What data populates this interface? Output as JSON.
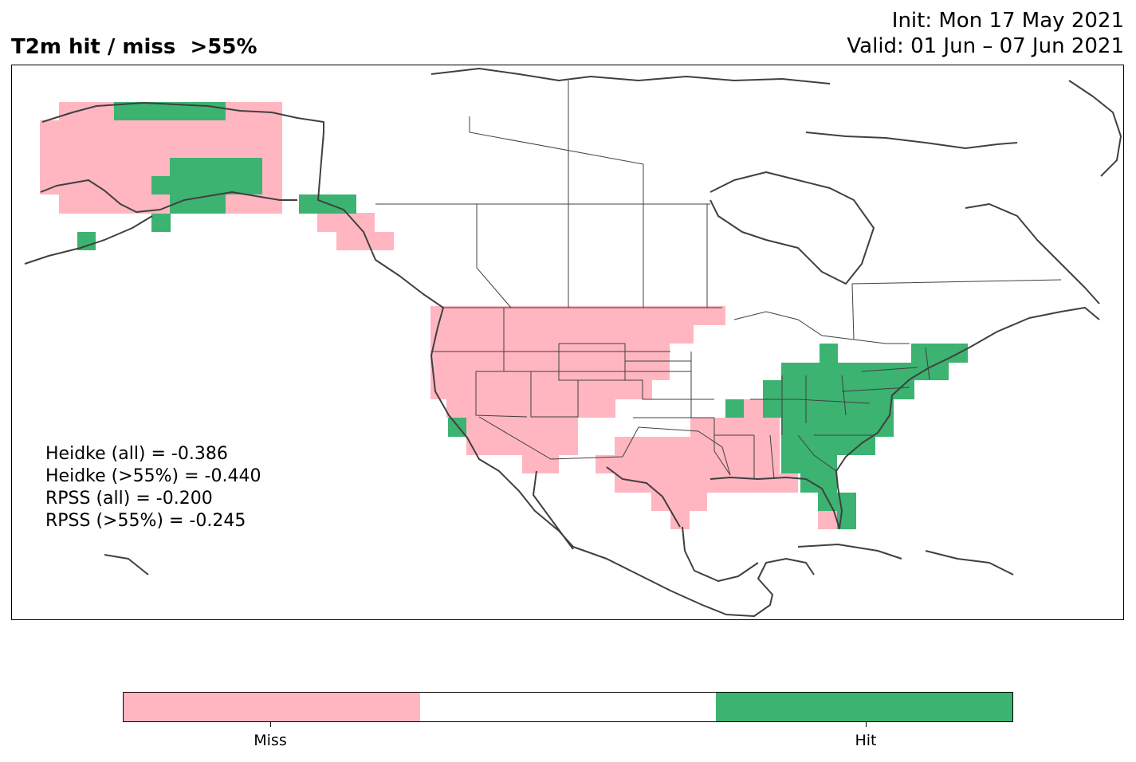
{
  "title": {
    "left": "T2m hit / miss  >55%",
    "init": "Init: Mon 17 May 2021",
    "valid": "Valid: 01 Jun – 07 Jun 2021"
  },
  "stats": [
    "Heidke (all) = -0.386",
    "Heidke (>55%) = -0.440",
    "RPSS (all) = -0.200",
    "RPSS (>55%) = -0.245"
  ],
  "legend": {
    "miss_label": "Miss",
    "hit_label": "Hit",
    "colors": {
      "miss": "#ffb6c1",
      "neutral": "#ffffff",
      "hit": "#3cb371"
    }
  }
}
